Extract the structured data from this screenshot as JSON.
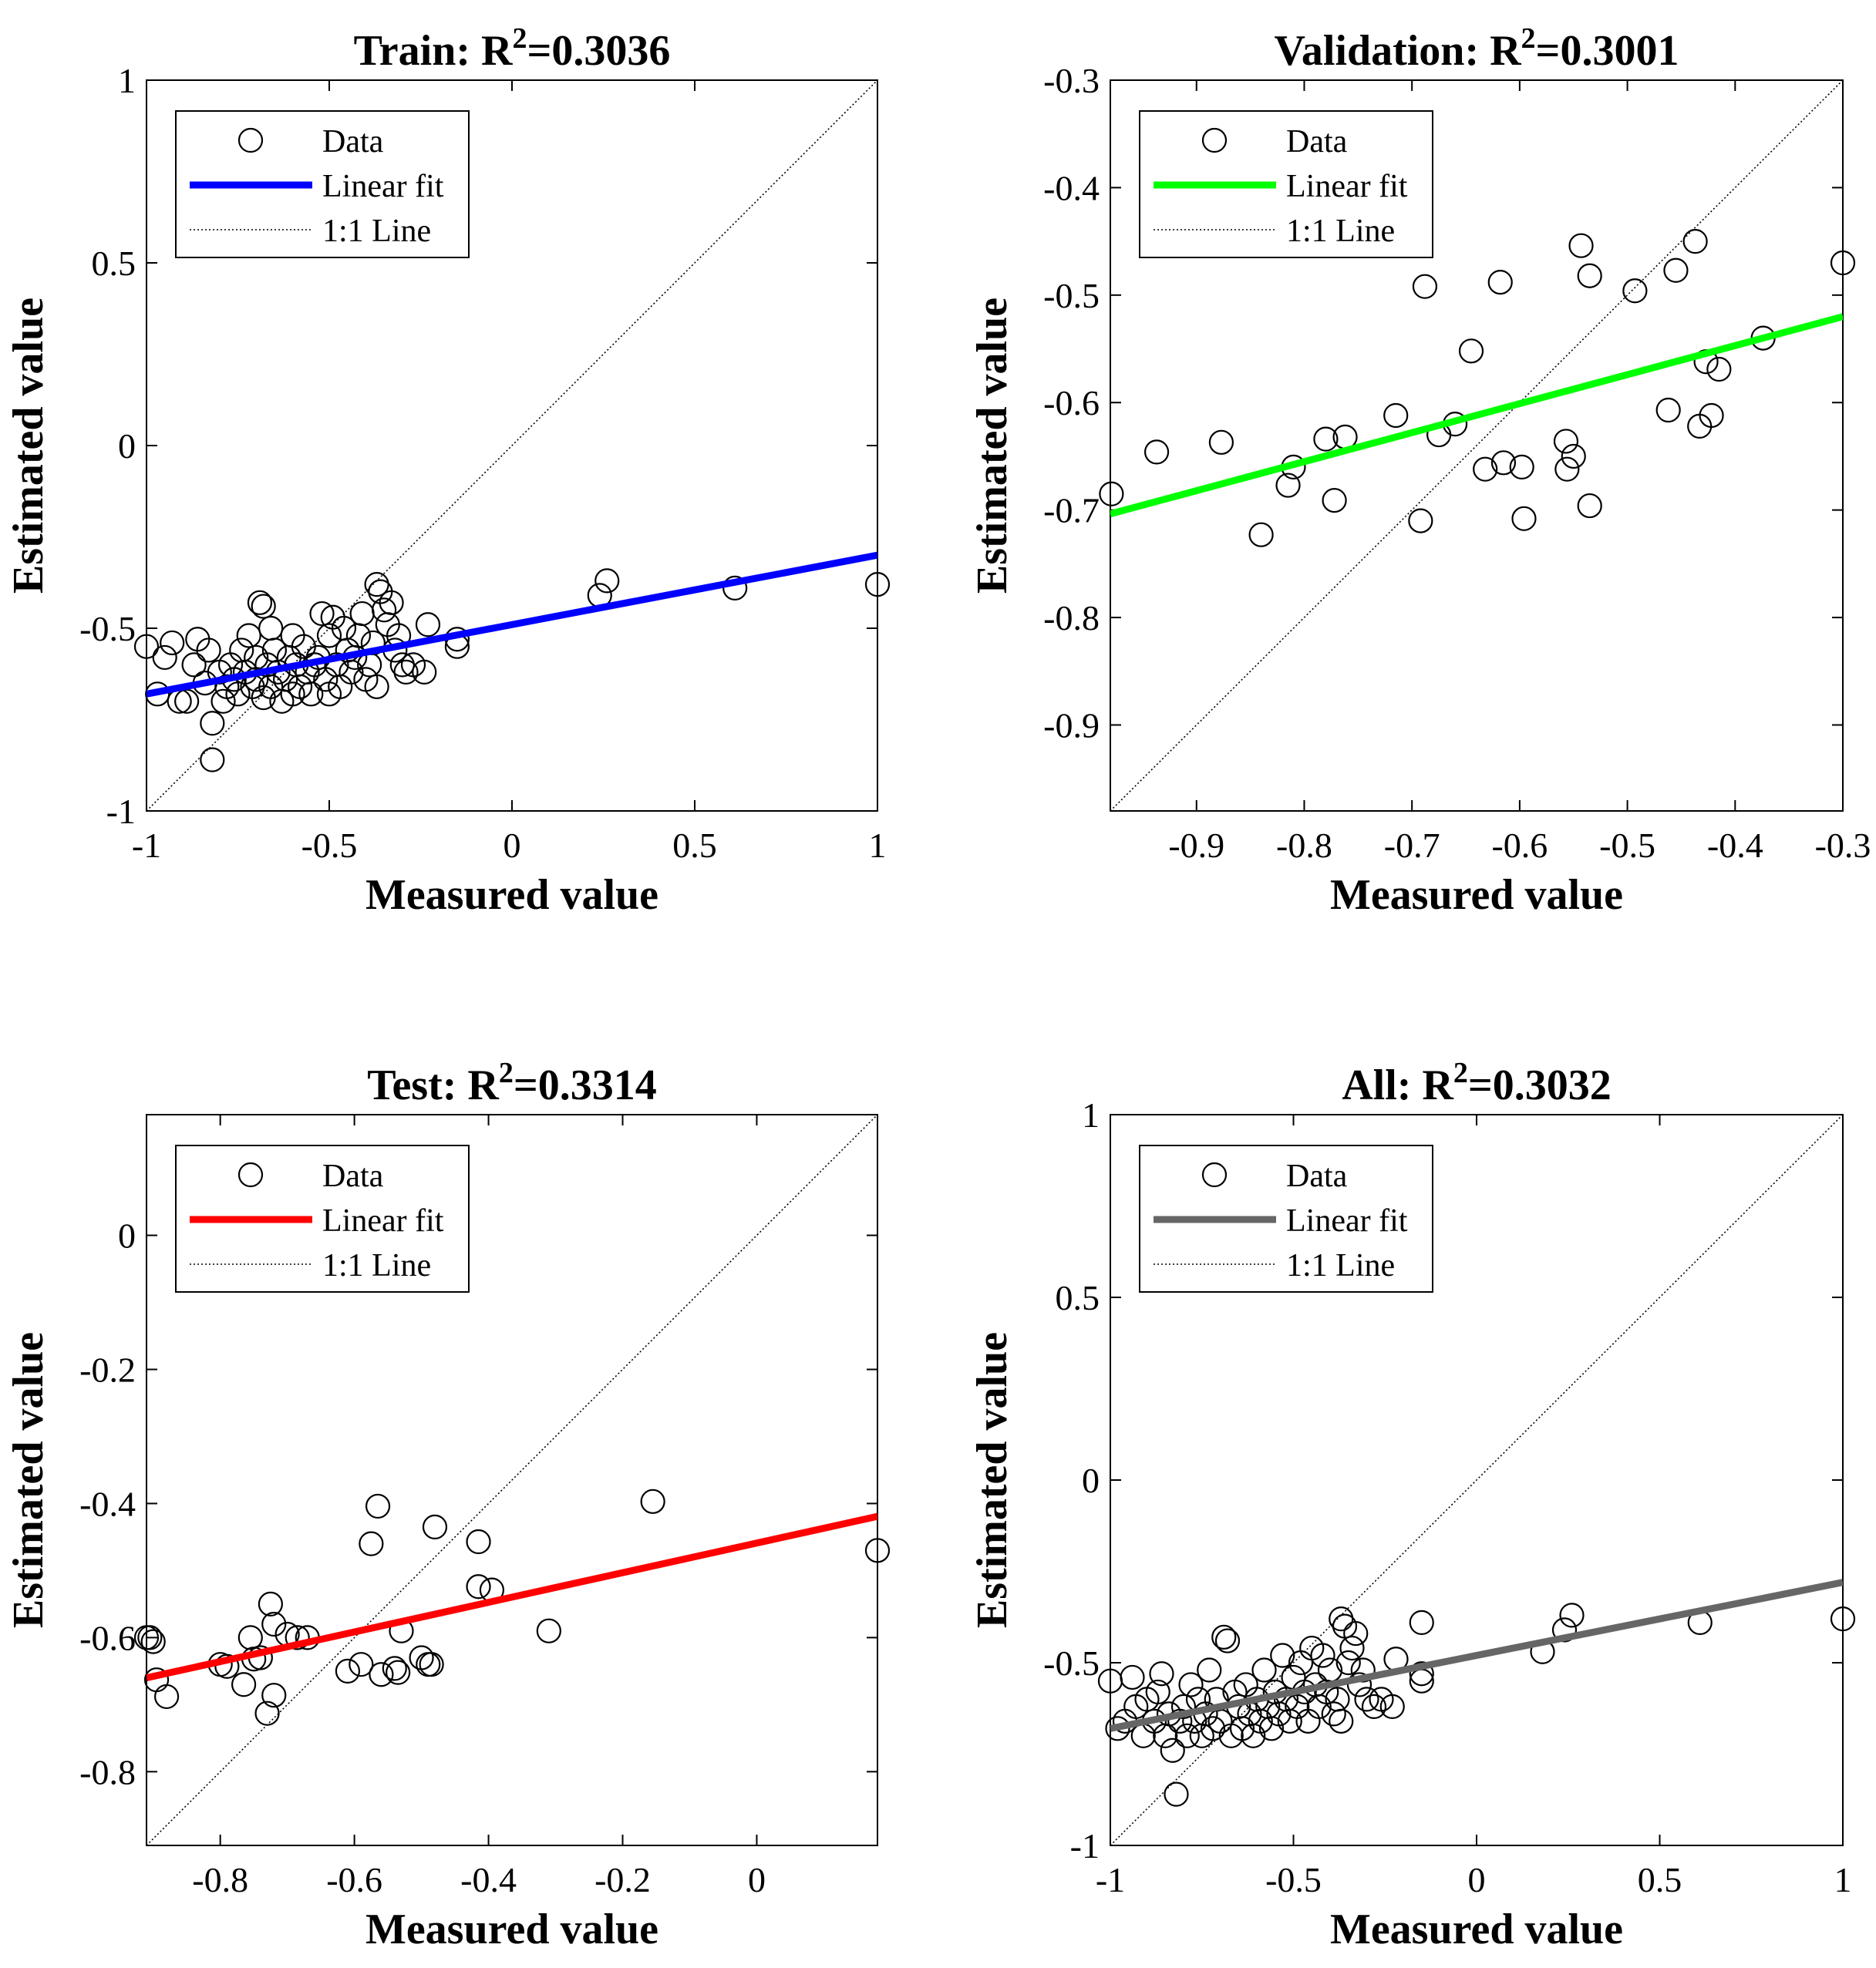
{
  "chart_data": [
    {
      "type": "scatter",
      "title_main": "Train: R",
      "title_sup": "2",
      "title_value": "=0.3036",
      "xlabel": "Measured value",
      "ylabel": "Estimated value",
      "xlim": [
        -1,
        1
      ],
      "ylim": [
        -1,
        1
      ],
      "xticks": [
        -1,
        -0.5,
        0,
        0.5,
        1
      ],
      "xtick_labels": [
        "-1",
        "-0.5",
        "0",
        "0.5",
        "1"
      ],
      "yticks": [
        -1,
        -0.5,
        0,
        0.5,
        1
      ],
      "ytick_labels": [
        "-1",
        "-0.5",
        "0",
        "0.5",
        "1"
      ],
      "fit_color": "#0000ff",
      "fit": {
        "slope": 0.19,
        "intercept": -0.49
      },
      "legend": [
        "Data",
        "Linear fit",
        "1:1 Line"
      ],
      "legend_position": "top-left",
      "points": [
        [
          -1.0,
          -0.55
        ],
        [
          -0.97,
          -0.68
        ],
        [
          -0.95,
          -0.58
        ],
        [
          -0.93,
          -0.54
        ],
        [
          -0.91,
          -0.7
        ],
        [
          -0.89,
          -0.7
        ],
        [
          -0.87,
          -0.6
        ],
        [
          -0.86,
          -0.53
        ],
        [
          -0.84,
          -0.65
        ],
        [
          -0.83,
          -0.56
        ],
        [
          -0.82,
          -0.76
        ],
        [
          -0.82,
          -0.86
        ],
        [
          -0.8,
          -0.62
        ],
        [
          -0.79,
          -0.7
        ],
        [
          -0.78,
          -0.66
        ],
        [
          -0.77,
          -0.6
        ],
        [
          -0.76,
          -0.64
        ],
        [
          -0.75,
          -0.68
        ],
        [
          -0.74,
          -0.56
        ],
        [
          -0.73,
          -0.62
        ],
        [
          -0.72,
          -0.52
        ],
        [
          -0.71,
          -0.66
        ],
        [
          -0.7,
          -0.58
        ],
        [
          -0.7,
          -0.64
        ],
        [
          -0.69,
          -0.43
        ],
        [
          -0.68,
          -0.44
        ],
        [
          -0.68,
          -0.69
        ],
        [
          -0.67,
          -0.6
        ],
        [
          -0.66,
          -0.5
        ],
        [
          -0.66,
          -0.66
        ],
        [
          -0.65,
          -0.56
        ],
        [
          -0.64,
          -0.62
        ],
        [
          -0.63,
          -0.7
        ],
        [
          -0.62,
          -0.64
        ],
        [
          -0.61,
          -0.58
        ],
        [
          -0.6,
          -0.52
        ],
        [
          -0.6,
          -0.68
        ],
        [
          -0.59,
          -0.6
        ],
        [
          -0.58,
          -0.66
        ],
        [
          -0.57,
          -0.55
        ],
        [
          -0.56,
          -0.62
        ],
        [
          -0.55,
          -0.68
        ],
        [
          -0.54,
          -0.6
        ],
        [
          -0.53,
          -0.58
        ],
        [
          -0.52,
          -0.46
        ],
        [
          -0.51,
          -0.64
        ],
        [
          -0.5,
          -0.52
        ],
        [
          -0.5,
          -0.68
        ],
        [
          -0.49,
          -0.47
        ],
        [
          -0.48,
          -0.6
        ],
        [
          -0.47,
          -0.66
        ],
        [
          -0.46,
          -0.5
        ],
        [
          -0.45,
          -0.56
        ],
        [
          -0.44,
          -0.62
        ],
        [
          -0.43,
          -0.58
        ],
        [
          -0.42,
          -0.52
        ],
        [
          -0.41,
          -0.46
        ],
        [
          -0.4,
          -0.64
        ],
        [
          -0.39,
          -0.6
        ],
        [
          -0.38,
          -0.54
        ],
        [
          -0.37,
          -0.38
        ],
        [
          -0.37,
          -0.66
        ],
        [
          -0.36,
          -0.4
        ],
        [
          -0.35,
          -0.45
        ],
        [
          -0.34,
          -0.49
        ],
        [
          -0.33,
          -0.43
        ],
        [
          -0.32,
          -0.56
        ],
        [
          -0.31,
          -0.52
        ],
        [
          -0.3,
          -0.6
        ],
        [
          -0.29,
          -0.62
        ],
        [
          -0.27,
          -0.6
        ],
        [
          -0.24,
          -0.62
        ],
        [
          -0.23,
          -0.49
        ],
        [
          -0.15,
          -0.55
        ],
        [
          -0.15,
          -0.53
        ],
        [
          0.24,
          -0.41
        ],
        [
          0.26,
          -0.37
        ],
        [
          0.61,
          -0.39
        ],
        [
          1.0,
          -0.38
        ]
      ]
    },
    {
      "type": "scatter",
      "title_main": "Validation: R",
      "title_sup": "2",
      "title_value": "=0.3001",
      "xlabel": "Measured value",
      "ylabel": "Estimated value",
      "xlim": [
        -0.98,
        -0.3
      ],
      "ylim": [
        -0.98,
        -0.3
      ],
      "xticks": [
        -0.9,
        -0.8,
        -0.7,
        -0.6,
        -0.5,
        -0.4,
        -0.3
      ],
      "xtick_labels": [
        "-0.9",
        "-0.8",
        "-0.7",
        "-0.6",
        "-0.5",
        "-0.4",
        "-0.3"
      ],
      "yticks": [
        -0.9,
        -0.8,
        -0.7,
        -0.6,
        -0.5,
        -0.4,
        -0.3
      ],
      "ytick_labels": [
        "-0.9",
        "-0.8",
        "-0.7",
        "-0.6",
        "-0.5",
        "-0.4",
        "-0.3"
      ],
      "fit_color": "#00ff00",
      "fit": {
        "slope": 0.27,
        "intercept": -0.439
      },
      "legend": [
        "Data",
        "Linear fit",
        "1:1 Line"
      ],
      "legend_position": "top-left",
      "points": [
        [
          -0.979,
          -0.685
        ],
        [
          -0.937,
          -0.646
        ],
        [
          -0.877,
          -0.637
        ],
        [
          -0.84,
          -0.723
        ],
        [
          -0.815,
          -0.677
        ],
        [
          -0.81,
          -0.66
        ],
        [
          -0.78,
          -0.634
        ],
        [
          -0.772,
          -0.691
        ],
        [
          -0.762,
          -0.632
        ],
        [
          -0.715,
          -0.612
        ],
        [
          -0.692,
          -0.71
        ],
        [
          -0.688,
          -0.492
        ],
        [
          -0.675,
          -0.63
        ],
        [
          -0.66,
          -0.62
        ],
        [
          -0.645,
          -0.552
        ],
        [
          -0.632,
          -0.662
        ],
        [
          -0.618,
          -0.488
        ],
        [
          -0.615,
          -0.656
        ],
        [
          -0.598,
          -0.66
        ],
        [
          -0.596,
          -0.708
        ],
        [
          -0.557,
          -0.636
        ],
        [
          -0.556,
          -0.662
        ],
        [
          -0.55,
          -0.65
        ],
        [
          -0.543,
          -0.454
        ],
        [
          -0.535,
          -0.482
        ],
        [
          -0.535,
          -0.696
        ],
        [
          -0.493,
          -0.496
        ],
        [
          -0.462,
          -0.607
        ],
        [
          -0.455,
          -0.477
        ],
        [
          -0.437,
          -0.45
        ],
        [
          -0.433,
          -0.622
        ],
        [
          -0.427,
          -0.562
        ],
        [
          -0.422,
          -0.612
        ],
        [
          -0.415,
          -0.569
        ],
        [
          -0.374,
          -0.54
        ],
        [
          -0.3,
          -0.47
        ]
      ]
    },
    {
      "type": "scatter",
      "title_main": "Test: R",
      "title_sup": "2",
      "title_value": "=0.3314",
      "xlabel": "Measured value",
      "ylabel": "Estimated value",
      "xlim": [
        -0.91,
        0.18
      ],
      "ylim": [
        -0.91,
        0.18
      ],
      "xticks": [
        -0.8,
        -0.6,
        -0.4,
        -0.2,
        0
      ],
      "xtick_labels": [
        "-0.8",
        "-0.6",
        "-0.4",
        "-0.2",
        "0"
      ],
      "yticks": [
        -0.8,
        -0.6,
        -0.4,
        -0.2,
        0
      ],
      "ytick_labels": [
        "-0.8",
        "-0.6",
        "-0.4",
        "-0.2",
        "0"
      ],
      "fit_color": "#ff0000",
      "fit": {
        "slope": 0.221,
        "intercept": -0.459
      },
      "legend": [
        "Data",
        "Linear fit",
        "1:1 Line"
      ],
      "legend_position": "top-left",
      "points": [
        [
          -0.91,
          -0.6
        ],
        [
          -0.905,
          -0.6
        ],
        [
          -0.9,
          -0.606
        ],
        [
          -0.895,
          -0.663
        ],
        [
          -0.88,
          -0.688
        ],
        [
          -0.8,
          -0.64
        ],
        [
          -0.79,
          -0.643
        ],
        [
          -0.765,
          -0.67
        ],
        [
          -0.755,
          -0.6
        ],
        [
          -0.75,
          -0.632
        ],
        [
          -0.74,
          -0.63
        ],
        [
          -0.73,
          -0.713
        ],
        [
          -0.725,
          -0.55
        ],
        [
          -0.72,
          -0.58
        ],
        [
          -0.72,
          -0.686
        ],
        [
          -0.7,
          -0.595
        ],
        [
          -0.685,
          -0.6
        ],
        [
          -0.67,
          -0.6
        ],
        [
          -0.61,
          -0.65
        ],
        [
          -0.59,
          -0.64
        ],
        [
          -0.575,
          -0.46
        ],
        [
          -0.565,
          -0.404
        ],
        [
          -0.56,
          -0.655
        ],
        [
          -0.54,
          -0.646
        ],
        [
          -0.535,
          -0.652
        ],
        [
          -0.53,
          -0.59
        ],
        [
          -0.5,
          -0.63
        ],
        [
          -0.49,
          -0.64
        ],
        [
          -0.485,
          -0.64
        ],
        [
          -0.48,
          -0.435
        ],
        [
          -0.415,
          -0.457
        ],
        [
          -0.415,
          -0.524
        ],
        [
          -0.395,
          -0.529
        ],
        [
          -0.31,
          -0.59
        ],
        [
          -0.155,
          -0.397
        ],
        [
          0.18,
          -0.47
        ]
      ]
    },
    {
      "type": "scatter",
      "title_main": "All: R",
      "title_sup": "2",
      "title_value": "=0.3032",
      "xlabel": "Measured value",
      "ylabel": "Estimated value",
      "xlim": [
        -1,
        1
      ],
      "ylim": [
        -1,
        1
      ],
      "xticks": [
        -1,
        -0.5,
        0,
        0.5,
        1
      ],
      "xtick_labels": [
        "-1",
        "-0.5",
        "0",
        "0.5",
        "1"
      ],
      "yticks": [
        -1,
        -0.5,
        0,
        0.5,
        1
      ],
      "ytick_labels": [
        "-1",
        "-0.5",
        "0",
        "0.5",
        "1"
      ],
      "fit_color": "#666666",
      "fit": {
        "slope": 0.2,
        "intercept": -0.48
      },
      "legend": [
        "Data",
        "Linear fit",
        "1:1 Line"
      ],
      "legend_position": "top-left",
      "points": [
        [
          -1.0,
          -0.55
        ],
        [
          -0.98,
          -0.68
        ],
        [
          -0.96,
          -0.66
        ],
        [
          -0.94,
          -0.54
        ],
        [
          -0.93,
          -0.62
        ],
        [
          -0.91,
          -0.7
        ],
        [
          -0.9,
          -0.6
        ],
        [
          -0.88,
          -0.66
        ],
        [
          -0.87,
          -0.58
        ],
        [
          -0.86,
          -0.53
        ],
        [
          -0.85,
          -0.7
        ],
        [
          -0.84,
          -0.64
        ],
        [
          -0.83,
          -0.74
        ],
        [
          -0.82,
          -0.86
        ],
        [
          -0.81,
          -0.66
        ],
        [
          -0.8,
          -0.62
        ],
        [
          -0.79,
          -0.7
        ],
        [
          -0.78,
          -0.56
        ],
        [
          -0.77,
          -0.66
        ],
        [
          -0.76,
          -0.6
        ],
        [
          -0.75,
          -0.7
        ],
        [
          -0.74,
          -0.64
        ],
        [
          -0.73,
          -0.52
        ],
        [
          -0.72,
          -0.68
        ],
        [
          -0.71,
          -0.6
        ],
        [
          -0.7,
          -0.66
        ],
        [
          -0.69,
          -0.43
        ],
        [
          -0.68,
          -0.44
        ],
        [
          -0.67,
          -0.7
        ],
        [
          -0.66,
          -0.58
        ],
        [
          -0.65,
          -0.62
        ],
        [
          -0.64,
          -0.68
        ],
        [
          -0.63,
          -0.56
        ],
        [
          -0.62,
          -0.64
        ],
        [
          -0.61,
          -0.7
        ],
        [
          -0.6,
          -0.6
        ],
        [
          -0.59,
          -0.66
        ],
        [
          -0.58,
          -0.52
        ],
        [
          -0.57,
          -0.62
        ],
        [
          -0.56,
          -0.68
        ],
        [
          -0.55,
          -0.58
        ],
        [
          -0.54,
          -0.64
        ],
        [
          -0.53,
          -0.48
        ],
        [
          -0.52,
          -0.6
        ],
        [
          -0.51,
          -0.66
        ],
        [
          -0.5,
          -0.54
        ],
        [
          -0.49,
          -0.62
        ],
        [
          -0.48,
          -0.5
        ],
        [
          -0.47,
          -0.58
        ],
        [
          -0.46,
          -0.66
        ],
        [
          -0.45,
          -0.46
        ],
        [
          -0.44,
          -0.56
        ],
        [
          -0.43,
          -0.62
        ],
        [
          -0.42,
          -0.48
        ],
        [
          -0.41,
          -0.58
        ],
        [
          -0.4,
          -0.52
        ],
        [
          -0.39,
          -0.64
        ],
        [
          -0.38,
          -0.6
        ],
        [
          -0.37,
          -0.38
        ],
        [
          -0.37,
          -0.66
        ],
        [
          -0.36,
          -0.4
        ],
        [
          -0.35,
          -0.5
        ],
        [
          -0.34,
          -0.46
        ],
        [
          -0.33,
          -0.42
        ],
        [
          -0.32,
          -0.56
        ],
        [
          -0.31,
          -0.52
        ],
        [
          -0.3,
          -0.6
        ],
        [
          -0.28,
          -0.62
        ],
        [
          -0.26,
          -0.6
        ],
        [
          -0.23,
          -0.62
        ],
        [
          -0.22,
          -0.49
        ],
        [
          -0.15,
          -0.39
        ],
        [
          -0.15,
          -0.53
        ],
        [
          -0.15,
          -0.55
        ],
        [
          0.18,
          -0.47
        ],
        [
          0.24,
          -0.41
        ],
        [
          0.26,
          -0.37
        ],
        [
          0.61,
          -0.39
        ],
        [
          1.0,
          -0.38
        ]
      ]
    }
  ]
}
